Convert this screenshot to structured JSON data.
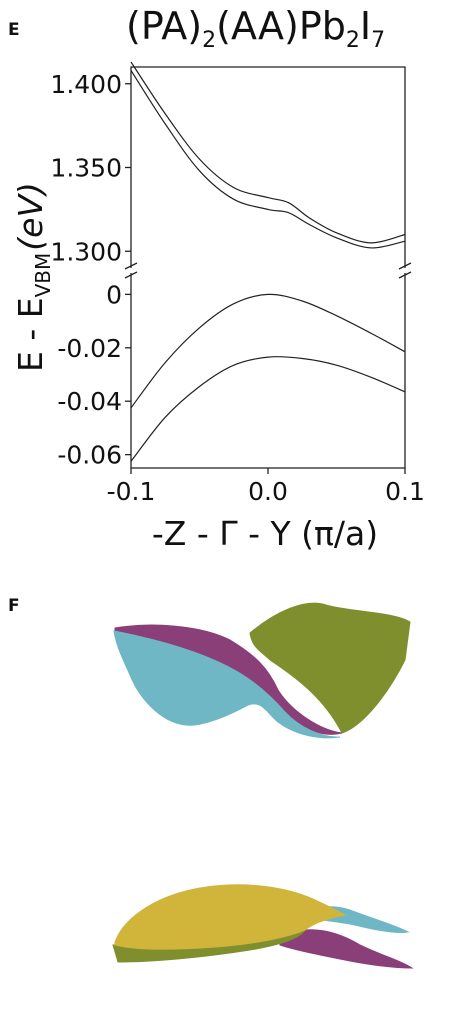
{
  "panel_e": {
    "letter": "E",
    "title_parts": {
      "open": "(PA)",
      "sub1": "2",
      "mid": "(AA)Pb",
      "sub2": "2",
      "end": "I",
      "sub3": "7"
    }
  },
  "panel_f": {
    "letter": "F"
  },
  "chart_data": {
    "type": "line",
    "broken_y_axis": true,
    "xlabel": "-Z - Γ - Y (π/a)",
    "ylabel_parts": {
      "main": "E - E",
      "sub": "VBM",
      "unit": "(eV)"
    },
    "xlim": [
      -0.1,
      0.1
    ],
    "x_ticks": [
      "-0.1",
      "0.0",
      "0.1"
    ],
    "upper_ylim": [
      1.29,
      1.41
    ],
    "upper_y_ticks": [
      "1.400",
      "1.350",
      "1.300"
    ],
    "lower_ylim": [
      -0.065,
      0.008
    ],
    "lower_y_ticks": [
      "0",
      "-0.02",
      "-0.04",
      "-0.06"
    ],
    "series": [
      {
        "panel": "upper",
        "x": [
          -0.1,
          -0.075,
          -0.05,
          -0.025,
          0.0,
          0.015,
          0.03,
          0.05,
          0.075,
          0.1
        ],
        "y": [
          1.413,
          1.382,
          1.355,
          1.338,
          1.332,
          1.329,
          1.32,
          1.311,
          1.305,
          1.31
        ]
      },
      {
        "panel": "upper",
        "x": [
          -0.1,
          -0.075,
          -0.05,
          -0.025,
          0.0,
          0.015,
          0.03,
          0.05,
          0.075,
          0.1
        ],
        "y": [
          1.408,
          1.376,
          1.348,
          1.331,
          1.325,
          1.323,
          1.316,
          1.308,
          1.302,
          1.306
        ]
      },
      {
        "panel": "lower",
        "x": [
          -0.1,
          -0.075,
          -0.05,
          -0.025,
          0.0,
          0.025,
          0.05,
          0.075,
          0.1
        ],
        "y": [
          -0.0425,
          -0.0255,
          -0.0125,
          -0.0035,
          0.0,
          -0.0025,
          -0.008,
          -0.0145,
          -0.0215
        ]
      },
      {
        "panel": "lower",
        "x": [
          -0.1,
          -0.075,
          -0.05,
          -0.025,
          0.0,
          0.025,
          0.05,
          0.075,
          0.1
        ],
        "y": [
          -0.0625,
          -0.046,
          -0.0345,
          -0.0265,
          -0.0235,
          -0.024,
          -0.0265,
          -0.031,
          -0.0365
        ]
      }
    ]
  },
  "surface_colors": {
    "teal": "#6fb7c4",
    "olive": "#7f8f2e",
    "purple": "#8a3f78",
    "yellow": "#d1b43a"
  }
}
